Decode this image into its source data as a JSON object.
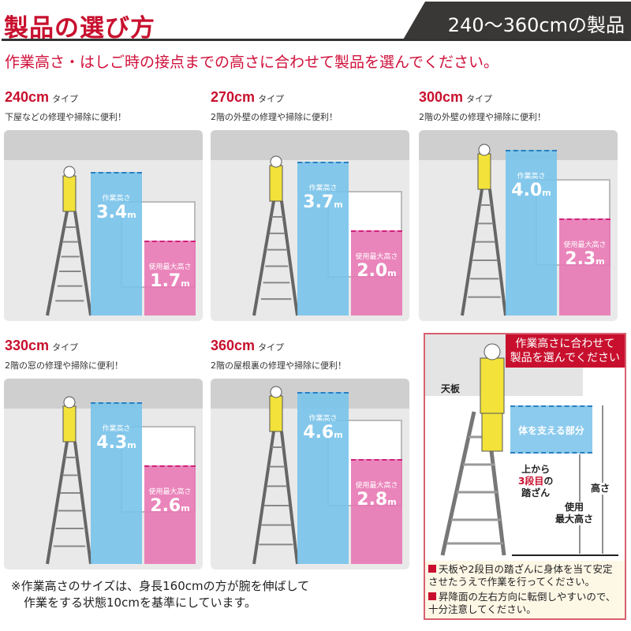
{
  "header": {
    "title": "製品の選び方",
    "range_tag": "240〜360cmの製品"
  },
  "lead": "作業高さ・はしご時の接点までの高さに合わせて製品を選んでください。",
  "type_suffix": "タイプ",
  "work_label": "作業高さ",
  "max_label": "使用最大高さ",
  "unit": "m",
  "products": [
    {
      "size": "240cm",
      "desc": "下屋などの修理や掃除に便利！",
      "work": "3.4",
      "max": "1.7"
    },
    {
      "size": "270cm",
      "desc": "2階の外壁の修理や掃除に便利！",
      "work": "3.7",
      "max": "2.0"
    },
    {
      "size": "300cm",
      "desc": "2階の外壁の修理や掃除に便利！",
      "work": "4.0",
      "max": "2.3"
    },
    {
      "size": "330cm",
      "desc": "2階の窓の修理や掃除に便利！",
      "work": "4.3",
      "max": "2.6"
    },
    {
      "size": "360cm",
      "desc": "2階の屋根裏の修理や掃除に便利！",
      "work": "4.6",
      "max": "2.8"
    }
  ],
  "note": [
    "※作業高さのサイズは、身長160cmの方が腕を伸ばして",
    "作業をする状態10cmを基準にしています。"
  ],
  "guide": {
    "callout": [
      "作業高さに合わせて",
      "製品を選んでください"
    ],
    "top_plate": "天板",
    "support": "体を支える部分",
    "step": [
      "上から",
      "3段目",
      "の",
      "踏ざん"
    ],
    "height": "高さ",
    "max_height": [
      "使用",
      "最大高さ"
    ],
    "warnings": [
      "天板や2段目の踏ざんに身体を当て安定させたうえで作業を行ってください。",
      "昇降面の左右方向に転倒しやすいので、十分注意してください。"
    ]
  },
  "colors": {
    "accent": "#c8102e",
    "work_bar": "#78c3eb",
    "max_bar": "#e878b4"
  }
}
